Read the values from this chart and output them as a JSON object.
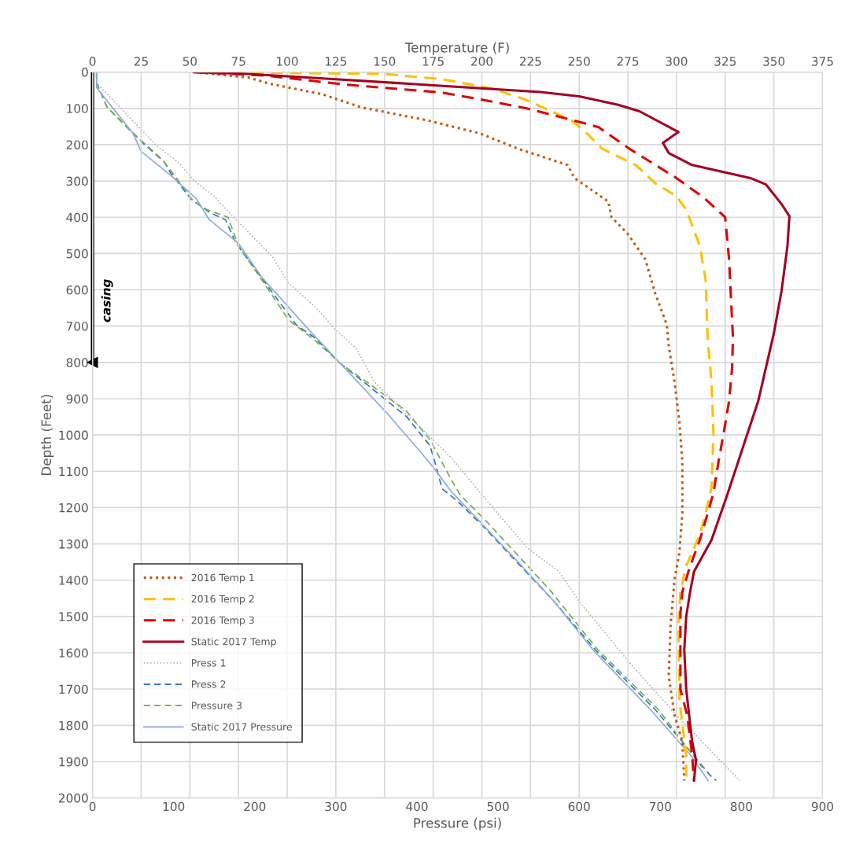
{
  "chart_data": {
    "type": "line",
    "xlabel": "Pressure (psi)",
    "x2label": "Temperature (F)",
    "ylabel": "Depth (Feet)",
    "xlim": [
      0,
      900
    ],
    "xticks": [
      0,
      100,
      200,
      300,
      400,
      500,
      600,
      700,
      800,
      900
    ],
    "x2lim": [
      0,
      375
    ],
    "x2ticks": [
      0,
      25,
      50,
      75,
      100,
      125,
      150,
      175,
      200,
      225,
      250,
      275,
      300,
      325,
      350,
      375
    ],
    "ylim": [
      2000,
      0
    ],
    "yticks": [
      0,
      100,
      200,
      300,
      400,
      500,
      600,
      700,
      800,
      900,
      1000,
      1100,
      1200,
      1300,
      1400,
      1500,
      1600,
      1700,
      1800,
      1900,
      2000
    ],
    "grid": true,
    "legend": "bottom left",
    "series": [
      {
        "name": "casing",
        "marker": "triangle",
        "color": "#000000",
        "line_style": "solid",
        "x": [
          0,
          0
        ],
        "values": [
          0,
          800
        ]
      },
      {
        "name": "2016 Temp 1",
        "axis": "x2",
        "color": "#c55a11",
        "line_style": "dotted",
        "x": [
          52,
          80,
          91,
          118,
          138,
          172,
          199,
          219,
          244,
          247.6,
          265,
          266.6,
          274.7,
          284,
          289,
          295,
          296,
          299,
          301.5,
          303,
          303,
          301.5,
          299,
          297.5,
          297,
          296,
          299,
          303,
          304
        ],
        "values": [
          0,
          15,
          32,
          61,
          97,
          133,
          169,
          212,
          256,
          292,
          357,
          400,
          444,
          516,
          609,
          696,
          754,
          855,
          964,
          1073,
          1216,
          1324,
          1397,
          1491,
          1520,
          1664,
          1772,
          1844,
          1952
        ]
      },
      {
        "name": "2016 Temp 2",
        "axis": "x2",
        "color": "#ffc000",
        "line_style": "dashed",
        "x": [
          52,
          150,
          180,
          205,
          222,
          246,
          254,
          262,
          279,
          289,
          300,
          305,
          312,
          315,
          316,
          318,
          319,
          318,
          315,
          312,
          305,
          302,
          301,
          301.6,
          305,
          305
        ],
        "values": [
          0,
          5,
          20,
          45,
          75,
          133,
          169,
          212,
          256,
          306,
          342,
          379,
          479,
          574,
          732,
          855,
          999,
          1144,
          1216,
          1274,
          1361,
          1432,
          1520,
          1735,
          1881,
          1952
        ]
      },
      {
        "name": "2016 Temp 3",
        "axis": "x2",
        "color": "#e00000",
        "line_style": "dashed",
        "x": [
          52,
          90,
          131,
          179,
          199,
          223,
          252,
          260,
          276,
          300,
          314,
          325,
          327,
          329,
          328.5,
          327,
          324.5,
          321.6,
          319,
          316,
          312,
          307,
          303,
          302,
          302,
          305.5,
          308,
          309
        ],
        "values": [
          0,
          10,
          35,
          56,
          75,
          100,
          140,
          152,
          212,
          292,
          346,
          400,
          516,
          732,
          819,
          906,
          986,
          1073,
          1159,
          1216,
          1289,
          1361,
          1432,
          1491,
          1701,
          1772,
          1881,
          1952
        ]
      },
      {
        "name": "Static 2017 Temp",
        "axis": "x2",
        "color": "#a50021",
        "line_style": "solid",
        "x": [
          52,
          80,
          120,
          180,
          230,
          250,
          270,
          281,
          301,
          293,
          296,
          308,
          338,
          346,
          354,
          358,
          357,
          354,
          350,
          342,
          334,
          326,
          318,
          309,
          307,
          305,
          304,
          305,
          308,
          310,
          309
        ],
        "values": [
          0,
          5,
          18,
          38,
          55,
          67,
          90,
          108,
          165,
          195,
          223,
          256,
          292,
          310,
          364,
          397,
          479,
          602,
          720,
          906,
          1036,
          1166,
          1289,
          1376,
          1432,
          1500,
          1592,
          1701,
          1844,
          1896,
          1952
        ]
      },
      {
        "name": "Press 1",
        "color": "#b4b4b4",
        "line_style": "dotted",
        "x": [
          5,
          5,
          11.6,
          80,
          106,
          125,
          150,
          177,
          222,
          241.5,
          274,
          300,
          325,
          348,
          387,
          440,
          478,
          536,
          575,
          601,
          636,
          662,
          720,
          779,
          798
        ],
        "values": [
          0,
          30,
          45,
          205,
          249,
          299,
          342,
          407,
          509,
          581,
          646,
          711,
          761,
          855,
          942,
          1057,
          1159,
          1311,
          1376,
          1462,
          1556,
          1627,
          1772,
          1909,
          1952
        ]
      },
      {
        "name": "Press 2",
        "color": "#2e75b6",
        "line_style": "dashed",
        "x": [
          5,
          5,
          18,
          47,
          63,
          89,
          96,
          121,
          144,
          164,
          177,
          215.5,
          251,
          274,
          306,
          339,
          387,
          416,
          423,
          431,
          449.5,
          480,
          568,
          620,
          694,
          762,
          769
        ],
        "values": [
          0,
          30,
          97,
          162,
          197,
          249,
          277,
          349,
          386,
          407,
          472,
          588,
          696,
          732,
          804,
          862,
          949,
          1029,
          1081,
          1148,
          1181,
          1248,
          1456,
          1592,
          1757,
          1939,
          1952
        ]
      },
      {
        "name": "Pressure 3",
        "color": "#70ad47",
        "line_style": "dashed",
        "x": [
          5,
          5,
          18,
          47,
          86,
          96,
          125,
          141,
          167,
          180,
          215.5,
          241.5,
          274,
          306,
          339,
          387,
          416.5,
          438,
          442,
          453,
          490,
          565,
          623,
          698,
          740,
          752
        ],
        "values": [
          0,
          30,
          97,
          162,
          241,
          270,
          357,
          379,
          400,
          479,
          595,
          682,
          739,
          804,
          855,
          934,
          1014,
          1105,
          1122,
          1164,
          1248,
          1430,
          1592,
          1757,
          1881,
          1917
        ]
      },
      {
        "name": "Static 2017 Pressure",
        "color": "#8faadc",
        "line_style": "solid",
        "x": [
          5,
          5,
          50,
          60,
          96,
          128,
          144,
          180,
          209,
          261,
          306,
          364,
          403,
          423,
          442,
          524,
          568,
          617,
          688,
          737,
          759
        ],
        "values": [
          0,
          43,
          169,
          219,
          284,
          349,
          407,
          472,
          566,
          696,
          804,
          942,
          1043,
          1097,
          1155,
          1348,
          1456,
          1592,
          1757,
          1881,
          1952
        ]
      }
    ]
  }
}
